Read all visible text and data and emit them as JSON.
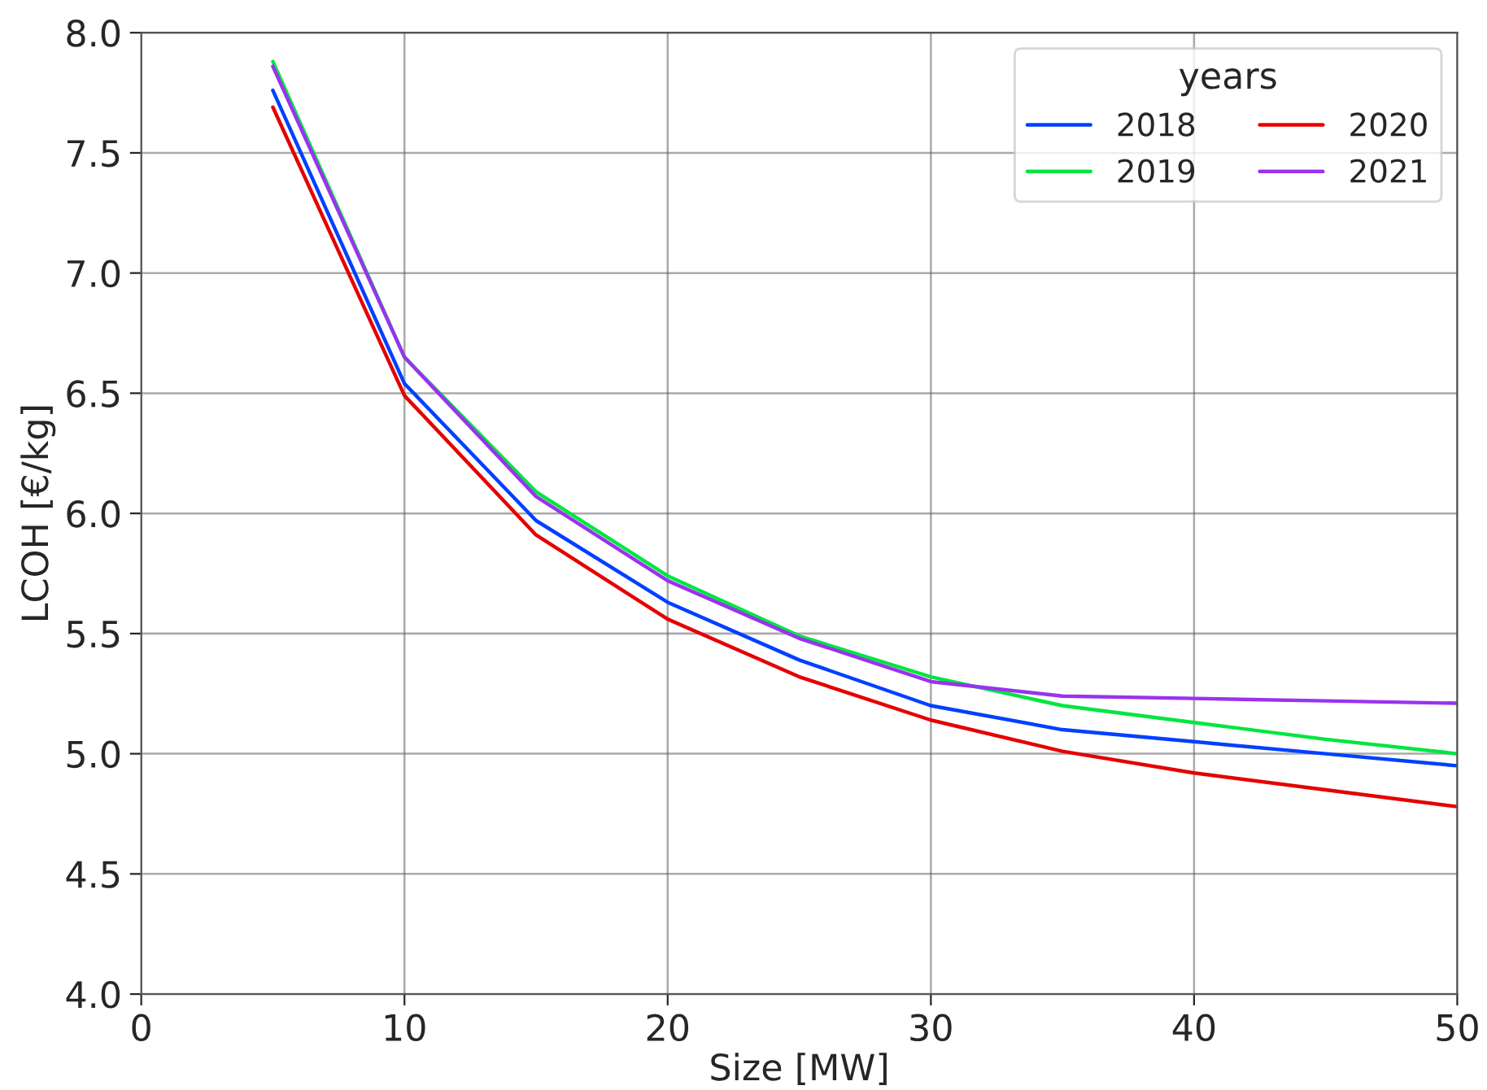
{
  "chart_data": {
    "type": "line",
    "xlabel": "Size [MW]",
    "ylabel": "LCOH [€/kg]",
    "legend_title": "years",
    "x": [
      5,
      10,
      15,
      20,
      25,
      30,
      35,
      40,
      45,
      50
    ],
    "series": [
      {
        "name": "2018",
        "color": "#0040ff",
        "values": [
          7.76,
          6.54,
          5.97,
          5.63,
          5.39,
          5.2,
          5.1,
          5.05,
          5.0,
          4.95
        ]
      },
      {
        "name": "2019",
        "color": "#00e640",
        "values": [
          7.88,
          6.65,
          6.09,
          5.74,
          5.49,
          5.32,
          5.2,
          5.13,
          5.06,
          5.0
        ]
      },
      {
        "name": "2020",
        "color": "#e60000",
        "values": [
          7.69,
          6.49,
          5.91,
          5.56,
          5.32,
          5.14,
          5.01,
          4.92,
          4.85,
          4.78
        ]
      },
      {
        "name": "2021",
        "color": "#9933ee",
        "values": [
          7.86,
          6.65,
          6.07,
          5.72,
          5.48,
          5.3,
          5.24,
          5.23,
          5.22,
          5.21
        ]
      }
    ],
    "xlim": [
      0,
      50
    ],
    "ylim": [
      4.0,
      8.0
    ],
    "xticks": [
      0,
      10,
      20,
      30,
      40,
      50
    ],
    "yticks": [
      {
        "value": 4,
        "label": "4.0"
      },
      4.5,
      {
        "value": 5,
        "label": "5.0"
      },
      5.5,
      {
        "value": 6,
        "label": "6.0"
      },
      6.5,
      {
        "value": 7,
        "label": "7.0"
      },
      7.5,
      {
        "value": 8,
        "label": "8.0"
      }
    ],
    "grid": true,
    "legend": "top right",
    "marker": "none",
    "line_style": "solid"
  }
}
